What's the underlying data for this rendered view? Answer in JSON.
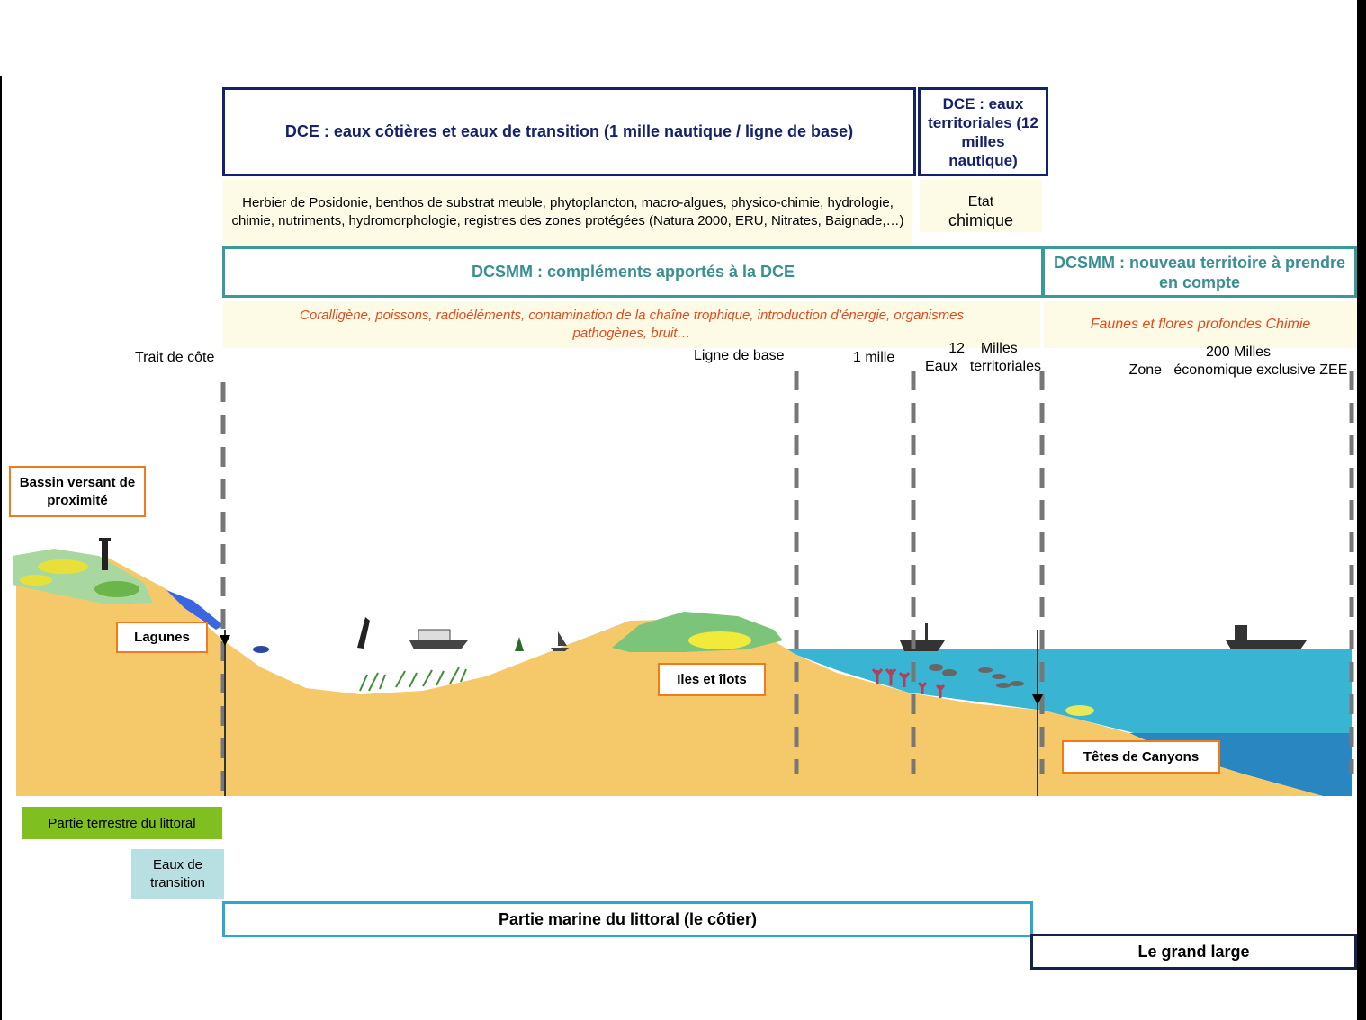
{
  "dce": {
    "coastal_title": "DCE : eaux côtières et eaux de transition (1 mille nautique /  ligne de base)",
    "coastal_elements": "Herbier de Posidonie, benthos de substrat meuble, phytoplancton, macro-algues, physico-chimie, hydrologie, chimie, nutriments, hydromorphologie, registres des zones protégées (Natura 2000, ERU, Nitrates, Baignade,…)",
    "territorial_title": "DCE : eaux territoriales (12 milles nautique)",
    "territorial_line1": "Etat",
    "territorial_line2": "chimique"
  },
  "dcsmm": {
    "complements_title": "DCSMM : compléments apportés à la DCE",
    "complements_elements": "Coralligène, poissons, radioéléments, contamination de la chaîne trophique, introduction d’énergie, organismes pathogènes, bruit…",
    "new_territory_title": "DCSMM : nouveau territoire à prendre en compte",
    "new_territory_elements": "Faunes et flores profondes  Chimie"
  },
  "limits": {
    "trait_de_cote": "Trait de côte",
    "ligne_de_base": "Ligne de base",
    "un_mille": "1 mille",
    "douze_milles_1": "12    Milles",
    "douze_milles_2": "Eaux   territoriales",
    "deux_cents_1": "200 Milles",
    "deux_cents_2": "Zone   économique exclusive ZEE"
  },
  "features": {
    "bassin_versant": "Bassin  versant de proximité",
    "lagunes": "Lagunes",
    "iles": "Iles  et îlots",
    "canyons": "Têtes de Canyons"
  },
  "zones": {
    "terrestre": "Partie terrestre du littoral",
    "transition": "Eaux  de transition",
    "marine": "Partie marine du littoral (le côtier)",
    "grand_large": "Le grand large"
  },
  "colors": {
    "dce_border": "#14226b",
    "dcsmm_border": "#3a9a9a",
    "sand": "#f5c96a",
    "sea": "#3ab4d3",
    "deep_sea": "#2a86c0",
    "terrestre_bg": "#7fbf1f",
    "transition_bg": "#b8dfe2",
    "marine_border": "#29a8d8",
    "grand_large_border": "#14224a",
    "feature_border": "#f07a1e"
  }
}
